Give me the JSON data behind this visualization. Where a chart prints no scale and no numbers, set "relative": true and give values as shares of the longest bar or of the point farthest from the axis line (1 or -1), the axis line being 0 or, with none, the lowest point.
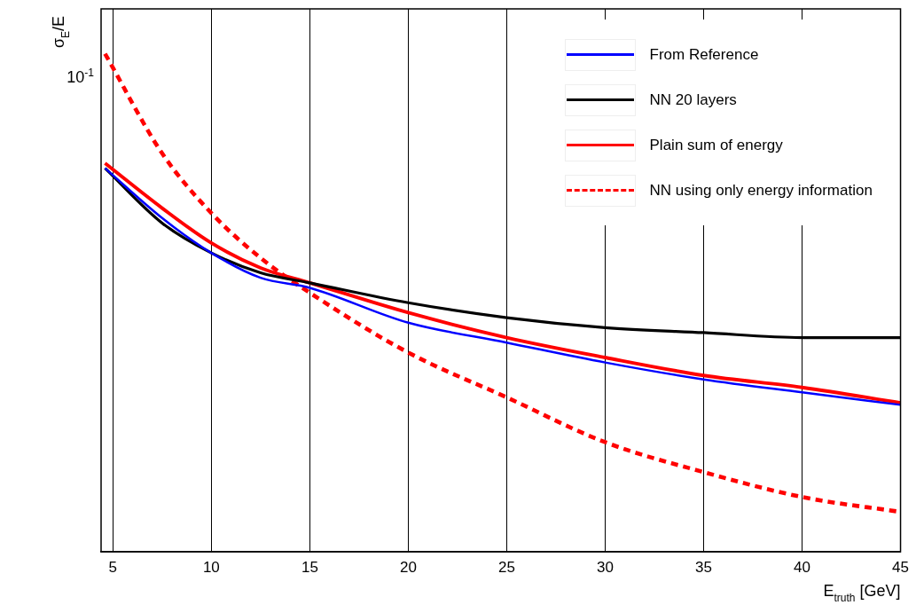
{
  "chart_data": {
    "type": "line",
    "xlabel": "E$_{truth}$ [GeV]",
    "ylabel": "σ$_{E}$/E",
    "relative": true,
    "annotations": [
      "10$^{-1}$"
    ],
    "xlim": [
      4.4,
      45
    ],
    "xticks": [
      5,
      10,
      15,
      20,
      25,
      30,
      35,
      40,
      45
    ],
    "grid": "x",
    "legend": "top right",
    "x": [
      4.6,
      7.5,
      10,
      12.5,
      15,
      20,
      25,
      30,
      35,
      40,
      45
    ],
    "series": [
      {
        "name": "From Reference",
        "color": "#0000ff",
        "values": [
          0.77,
          0.67,
          0.6,
          0.55,
          0.53,
          0.46,
          0.42,
          0.38,
          0.346,
          0.32,
          0.295
        ]
      },
      {
        "name": "NN 20 layers",
        "color": "#000000",
        "values": [
          0.77,
          0.66,
          0.6,
          0.56,
          0.54,
          0.5,
          0.47,
          0.45,
          0.44,
          0.43,
          0.43
        ]
      },
      {
        "name": "Plain sum of energy",
        "color": "#ff0000",
        "values": [
          0.78,
          0.69,
          0.62,
          0.57,
          0.54,
          0.48,
          0.43,
          0.39,
          0.354,
          0.33,
          0.299
        ]
      },
      {
        "name": "NN using only energy information",
        "color": "#ff0000",
        "line_style": "dashed",
        "values": [
          1,
          0.8,
          0.68,
          0.59,
          0.52,
          0.4,
          0.31,
          0.22,
          0.16,
          0.11,
          0.08
        ]
      }
    ]
  }
}
